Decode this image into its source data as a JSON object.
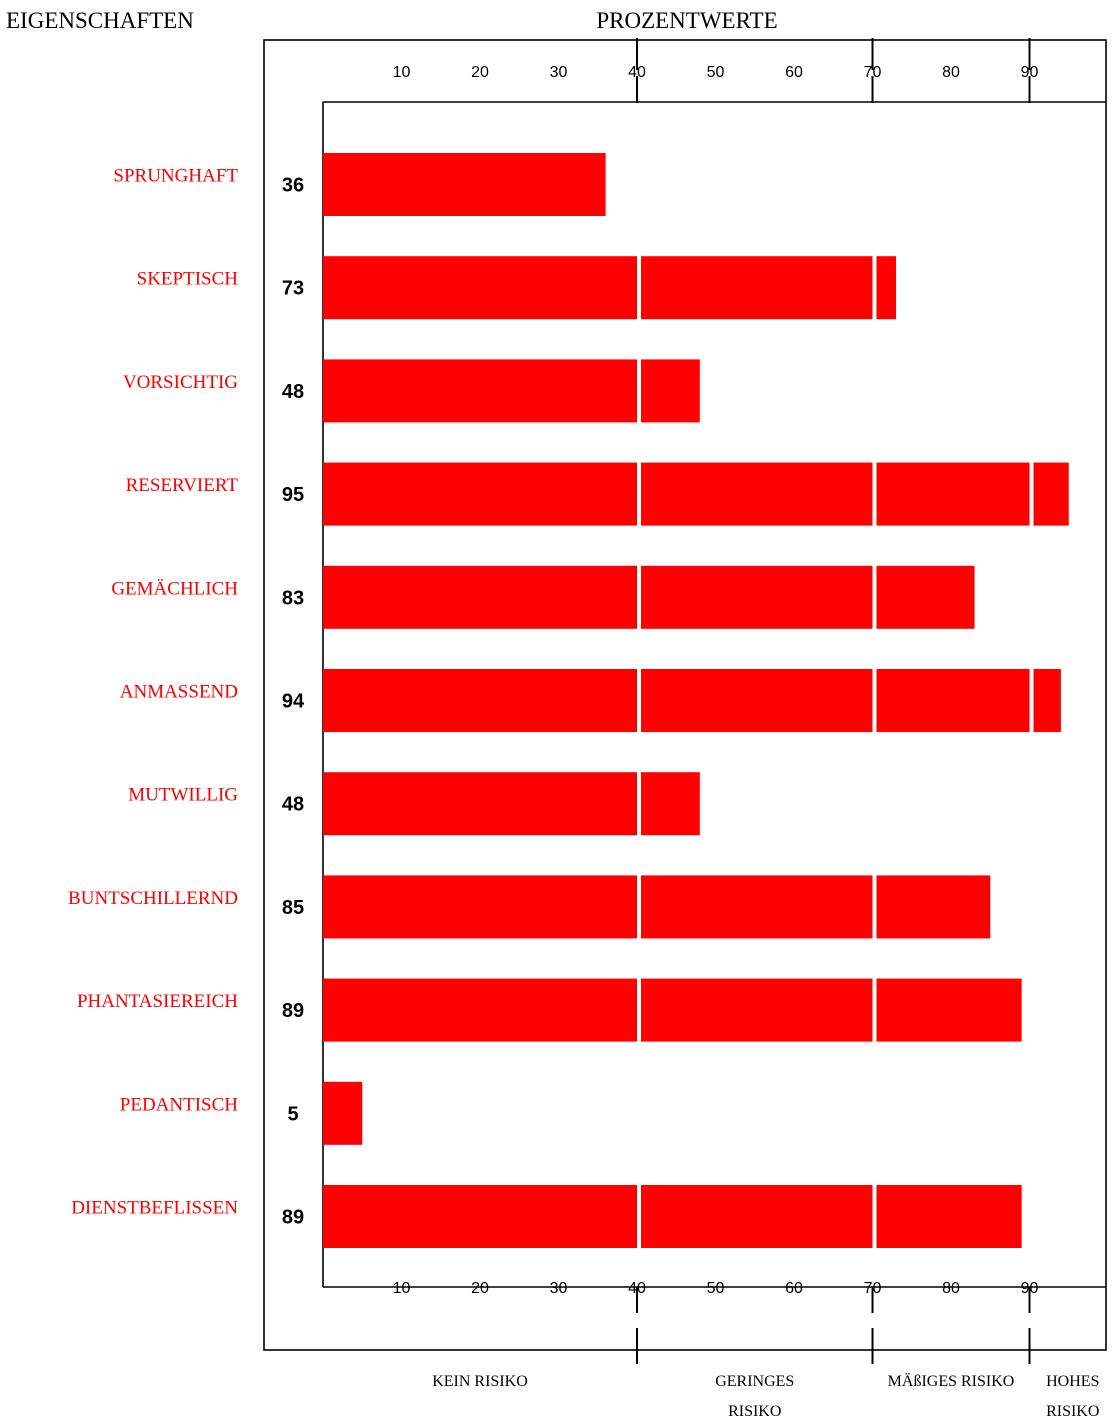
{
  "header": {
    "left_title": "EIGENSCHAFTEN",
    "center_title": "PROZENTWERTE"
  },
  "colors": {
    "bar": "#ff0000",
    "label": "#ff0000",
    "axis": "#000000",
    "value": "#000000"
  },
  "risk_bands": [
    {
      "from": 0,
      "to": 40,
      "lines": [
        "KEIN RISIKO"
      ]
    },
    {
      "from": 40,
      "to": 70,
      "lines": [
        "GERINGES",
        "RISIKO"
      ]
    },
    {
      "from": 70,
      "to": 90,
      "lines": [
        "MÄßIGES RISIKO"
      ]
    },
    {
      "from": 90,
      "to": 100,
      "lines": [
        "HOHES",
        "RISIKO"
      ]
    }
  ],
  "chart_data": {
    "type": "bar",
    "orientation": "horizontal",
    "xlim": [
      0,
      100
    ],
    "ticks": [
      10,
      20,
      30,
      40,
      50,
      60,
      70,
      80,
      90
    ],
    "major_ticks": [
      40,
      70,
      90
    ],
    "segment_breaks": [
      40,
      70,
      90
    ],
    "categories": [
      "SPRUNGHAFT",
      "SKEPTISCH",
      "VORSICHTIG",
      "RESERVIERT",
      "GEMÄCHLICH",
      "ANMASSEND",
      "MUTWILLIG",
      "BUNTSCHILLERND",
      "PHANTASIEREICH",
      "PEDANTISCH",
      "DIENSTBEFLISSEN"
    ],
    "values": [
      36,
      73,
      48,
      95,
      83,
      94,
      48,
      85,
      89,
      5,
      89
    ]
  }
}
